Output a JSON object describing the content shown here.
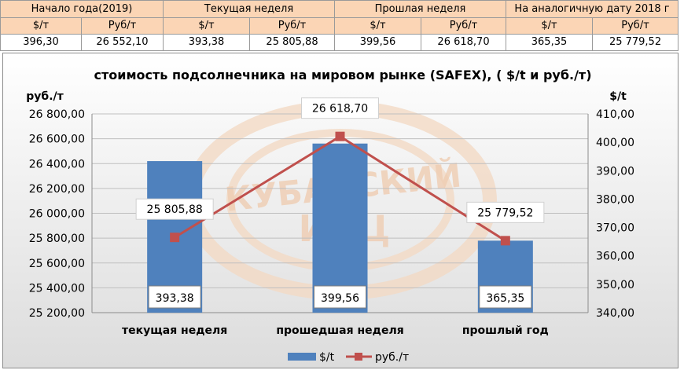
{
  "table": {
    "headers": [
      "Начало года(2019)",
      "Текущая неделя",
      "Прошлая неделя",
      "На аналогичную дату 2018 г"
    ],
    "units": [
      "$/т",
      "Руб/т",
      "$/т",
      "Руб/т",
      "$/т",
      "Руб/т",
      "$/т",
      "Руб/т"
    ],
    "values": [
      "396,30",
      "26 552,10",
      "393,38",
      "25 805,88",
      "399,56",
      "26 618,70",
      "365,35",
      "25 779,52"
    ]
  },
  "chart_data": {
    "type": "bar",
    "title": "стоимость подсолнечника на мировом рынке (SAFEX), ( $/t и руб./т)",
    "ylabel_left": "руб./т",
    "ylabel_right": "$/t",
    "categories": [
      "текущая неделя",
      "прошедшая неделя",
      "прошлый год"
    ],
    "y_left_ticks": [
      "26 800,00",
      "26 600,00",
      "26 400,00",
      "26 200,00",
      "26 000,00",
      "25 800,00",
      "25 600,00",
      "25 400,00",
      "25 200,00"
    ],
    "y_right_ticks": [
      "410,00",
      "400,00",
      "390,00",
      "380,00",
      "370,00",
      "360,00",
      "350,00",
      "340,00"
    ],
    "ylim_left": [
      25200,
      26800
    ],
    "ylim_right": [
      340,
      410
    ],
    "series": [
      {
        "name": "$/t",
        "kind": "bar",
        "axis": "right",
        "color": "#4f81bd",
        "values": [
          393.38,
          399.56,
          365.35
        ],
        "labels": [
          "393,38",
          "399,56",
          "365,35"
        ]
      },
      {
        "name": "руб./т",
        "kind": "line",
        "axis": "left",
        "color": "#c0504d",
        "values": [
          25805.88,
          26618.7,
          25779.52
        ],
        "labels": [
          "25 805,88",
          "26 618,70",
          "25 779,52"
        ]
      }
    ],
    "legend_position": "bottom",
    "watermark": "КУБАНСКИЙ ИАЦ"
  }
}
